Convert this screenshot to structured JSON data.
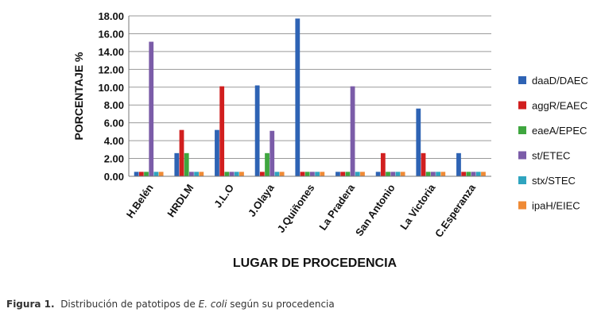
{
  "chart_data": {
    "type": "bar",
    "xlabel": "LUGAR DE PROCEDENCIA",
    "ylabel": "PORCENTAJE %",
    "ylim": [
      0,
      18
    ],
    "yticks": [
      "0.00",
      "2.00",
      "4.00",
      "6.00",
      "8.00",
      "10.00",
      "12.00",
      "14.00",
      "16.00",
      "18.00"
    ],
    "grid": true,
    "legend_position": "right",
    "categories": [
      "H.Belén",
      "HRDLM",
      "J.L.O",
      "J.Olaya",
      "J.Quiñones",
      "La Pradera",
      "San Antonio",
      "La Victoria",
      "C.Esperanza"
    ],
    "series": [
      {
        "name": "daaD/DAEC",
        "color": "#2e63b4",
        "values": [
          0.5,
          2.6,
          5.2,
          10.2,
          17.7,
          0.5,
          0.5,
          7.6,
          2.6
        ]
      },
      {
        "name": "aggR/EAEC",
        "color": "#d11f1f",
        "values": [
          0.5,
          5.2,
          10.1,
          0.5,
          0.5,
          0.5,
          2.6,
          2.6,
          0.5
        ]
      },
      {
        "name": "eaeA/EPEC",
        "color": "#3fa63f",
        "values": [
          0.5,
          2.6,
          0.5,
          2.6,
          0.5,
          0.5,
          0.5,
          0.5,
          0.5
        ]
      },
      {
        "name": "st/ETEC",
        "color": "#7b5ca8",
        "values": [
          15.1,
          0.5,
          0.5,
          5.1,
          0.5,
          10.1,
          0.5,
          0.5,
          0.5
        ]
      },
      {
        "name": "stx/STEC",
        "color": "#2fa4bf",
        "values": [
          0.5,
          0.5,
          0.5,
          0.5,
          0.5,
          0.5,
          0.5,
          0.5,
          0.5
        ]
      },
      {
        "name": "ipaH/EIEC",
        "color": "#ef8a35",
        "values": [
          0.5,
          0.5,
          0.5,
          0.5,
          0.5,
          0.5,
          0.5,
          0.5,
          0.5
        ]
      }
    ]
  },
  "caption": {
    "label": "Figura 1.",
    "text_before": "Distribución de patotipos de",
    "organism": "E. coli",
    "text_after": "según su procedencia"
  }
}
